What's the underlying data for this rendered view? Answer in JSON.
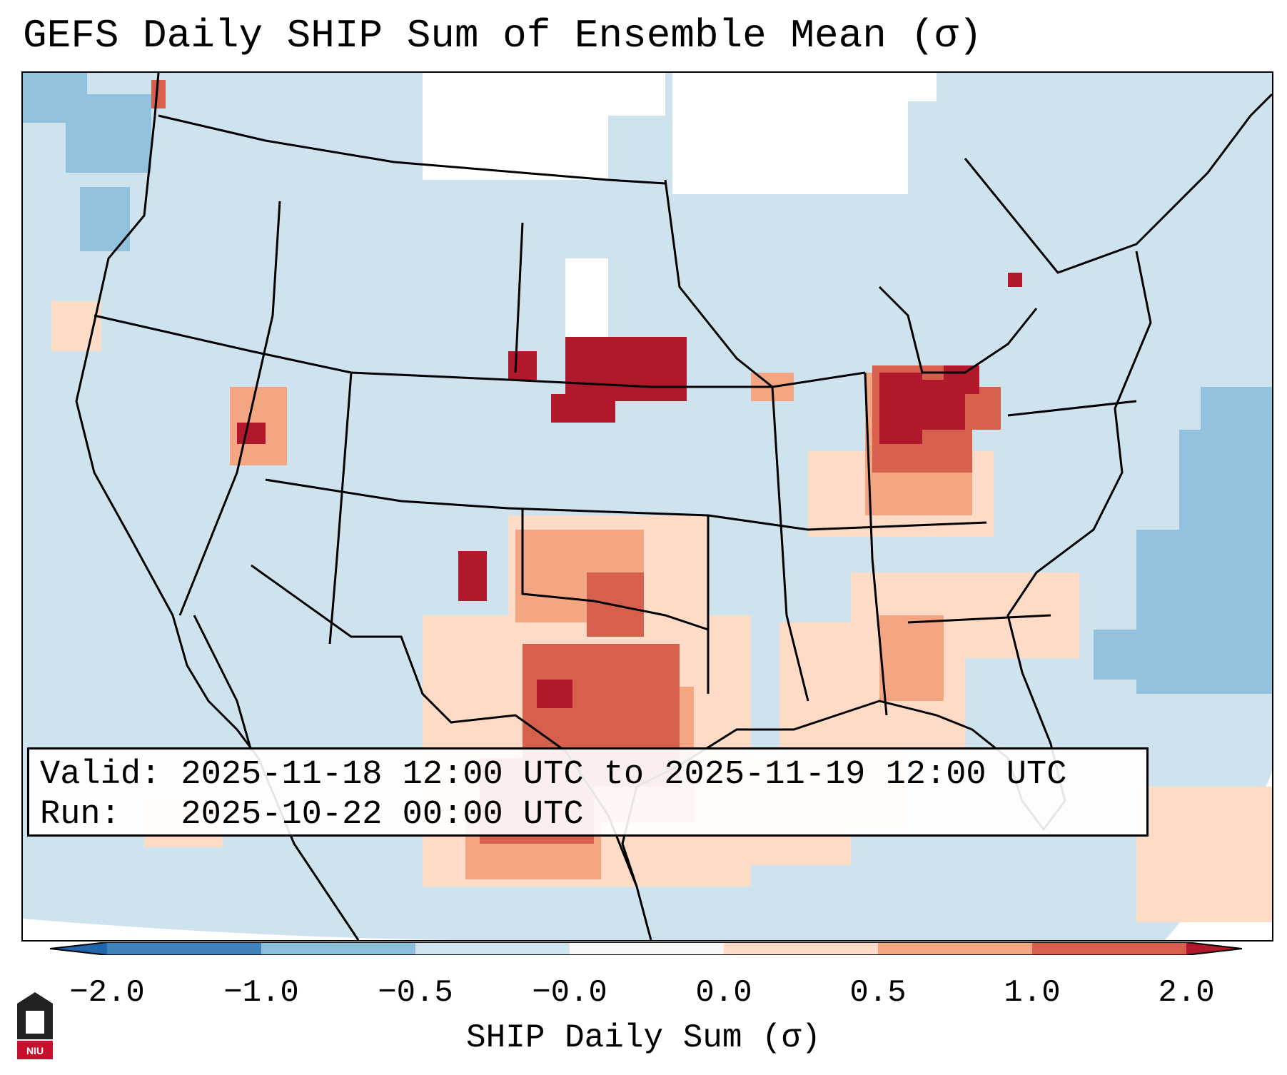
{
  "header": {
    "title": "GEFS Daily SHIP Sum of Ensemble Mean (σ)"
  },
  "map": {
    "region": "Contiguous United States",
    "field": "SHIP daily sum, ensemble mean (standard anomaly)",
    "valid_line": "Valid: 2025-11-18 12:00 UTC to 2025-11-19 12:00 UTC",
    "run_line": "Run:   2025-10-22 00:00 UTC"
  },
  "colorbar": {
    "title": "SHIP Daily Sum (σ)",
    "ticks": [
      "−2.0",
      "−1.0",
      "−0.5",
      "−0.0",
      "0.0",
      "0.5",
      "1.0",
      "2.0"
    ],
    "bins": [
      {
        "color": "#3e83bd"
      },
      {
        "color": "#8bbfdb"
      },
      {
        "color": "#d1e5f0"
      },
      {
        "color": "#f7f7f7"
      },
      {
        "color": "#fddbc7"
      },
      {
        "color": "#f4a582"
      },
      {
        "color": "#d6604d"
      }
    ],
    "extend_low_color": "#2166ac",
    "extend_high_color": "#b2182b"
  },
  "logo": {
    "text": "NIU"
  }
}
